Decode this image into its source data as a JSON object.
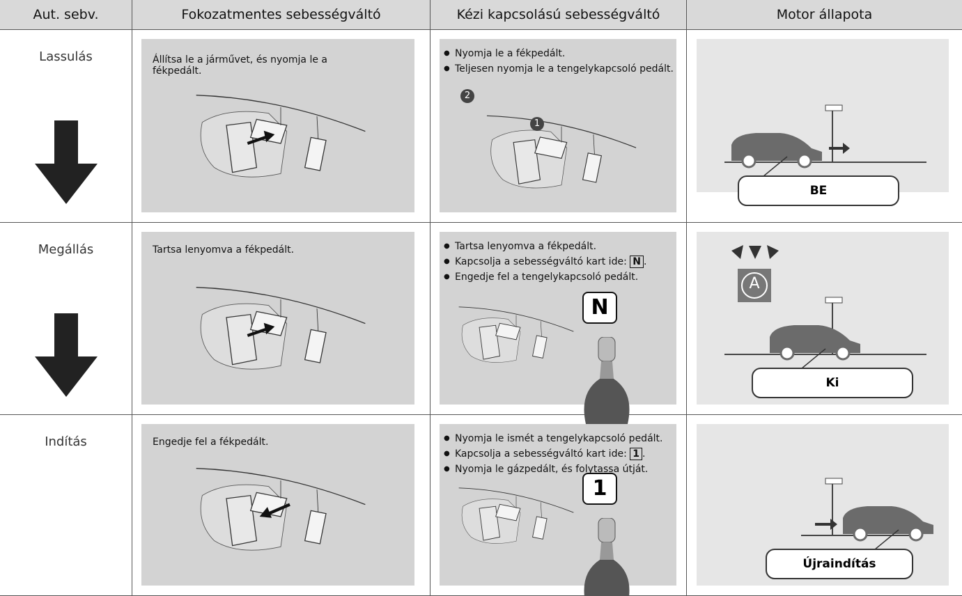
{
  "table": {
    "headers": [
      "Aut. sebv.",
      "Fokozatmentes sebességváltó",
      "Kézi kapcsolású sebességváltó",
      "Motor állapota"
    ],
    "rows": [
      {
        "stage": "Lassulás",
        "cvt": "Állítsa le a járművet, és nyomja le a fékpedált.",
        "manual": [
          "Nyomja le a fékpedált.",
          "Teljesen nyomja le a tengelykapcsoló pedált."
        ],
        "badges": [
          "2",
          "1"
        ],
        "engine": "BE"
      },
      {
        "stage": "Megállás",
        "cvt": "Tartsa lenyomva a fékpedált.",
        "manual": [
          "Tartsa lenyomva a fékpedált.",
          {
            "text": "Kapcsolja a sebességváltó kart ide:",
            "key": "N",
            "end": "."
          },
          "Engedje fel a tengelykapcsoló pedált."
        ],
        "gear": "N",
        "icon": "A",
        "engine": "Ki"
      },
      {
        "stage": "Indítás",
        "cvt": "Engedje fel a fékpedált.",
        "manual": [
          "Nyomja le ismét a tengelykapcsoló pedált.",
          {
            "text": "Kapcsolja a sebességváltó kart ide:",
            "key": "1",
            "end": "."
          },
          "Nyomja le gázpedált, és folytassa útját."
        ],
        "gear": "1",
        "engine": "Újraindítás"
      }
    ]
  }
}
